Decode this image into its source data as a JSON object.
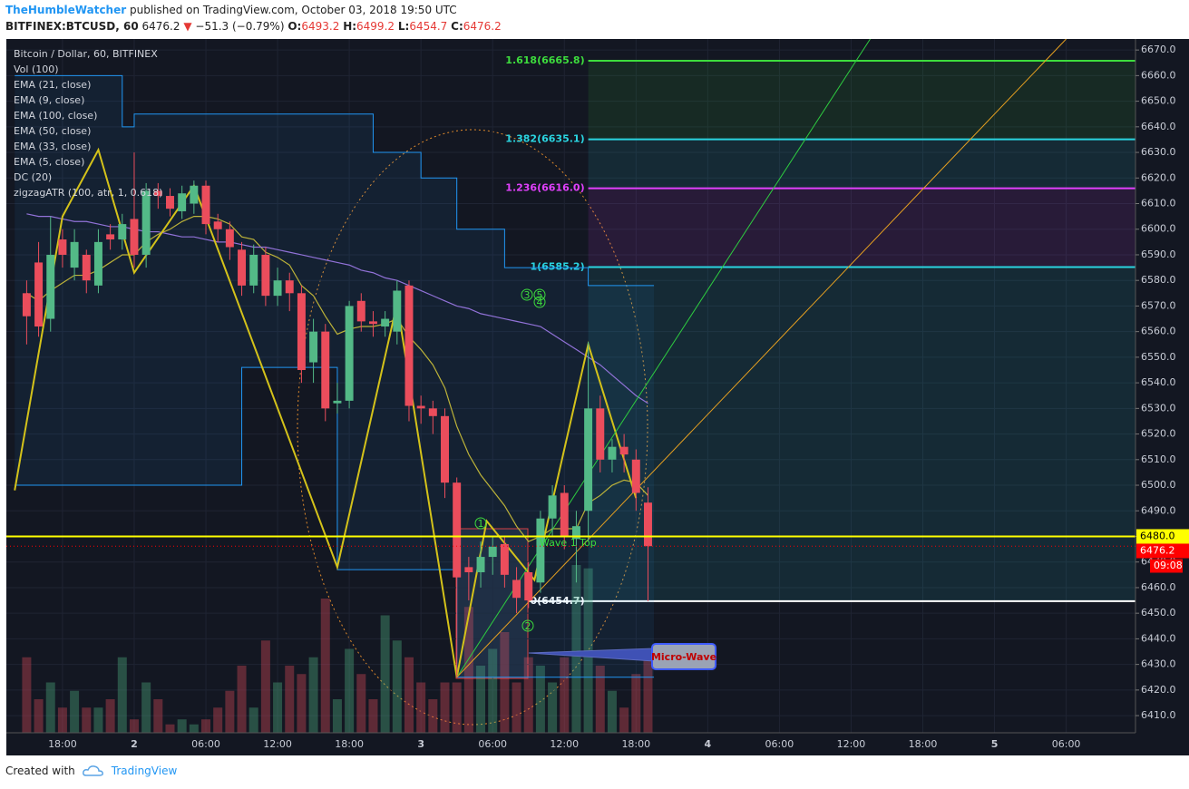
{
  "header": {
    "author": "TheHumbleWatcher",
    "published": "published on TradingView.com, October 03, 2018 19:50 UTC",
    "symbol": "BITFINEX:BTCUSD, 60",
    "last": "6476.2",
    "arrow": "▼",
    "change": "−51.3 (−0.79%)",
    "ohlc": [
      {
        "label": "O:",
        "value": "6493.2"
      },
      {
        "label": "H:",
        "value": "6499.2"
      },
      {
        "label": "L:",
        "value": "6454.7"
      },
      {
        "label": "C:",
        "value": "6476.2"
      }
    ]
  },
  "chart_data": {
    "type": "candlestick",
    "title": "Bitcoin / Dollar, 60, BITFINEX",
    "up_color": "#53b987",
    "down_color": "#eb4d5c",
    "x": [
      -3,
      -2,
      -1,
      0,
      1,
      2,
      3,
      4,
      5,
      6,
      7,
      8,
      9,
      10,
      11,
      12,
      13,
      14,
      15,
      16,
      17,
      18,
      19,
      20,
      21,
      22,
      23,
      24,
      25,
      26,
      27,
      28,
      29,
      30,
      31,
      32,
      33,
      34,
      35,
      36,
      37,
      38,
      39,
      40,
      41,
      42,
      43,
      44,
      45,
      46,
      47,
      48,
      49
    ],
    "open": [
      6575,
      6587,
      6565,
      6596,
      6585,
      6590,
      6578,
      6598,
      6596,
      6604,
      6590,
      6615,
      6613,
      6607,
      6610,
      6617,
      6603,
      6600,
      6592,
      6578,
      6590,
      6574,
      6580,
      6575,
      6548,
      6560,
      6532,
      6533,
      6572,
      6564,
      6562,
      6560,
      6578,
      6531,
      6530,
      6527,
      6501,
      6468,
      6466,
      6472,
      6477,
      6463,
      6466,
      6462,
      6487,
      6497,
      6479,
      6490,
      6530,
      6510,
      6515,
      6510,
      6493.2
    ],
    "high": [
      6580,
      6595,
      6605,
      6600,
      6600,
      6592,
      6600,
      6602,
      6606,
      6630,
      6618,
      6618,
      6616,
      6617,
      6619,
      6619,
      6606,
      6603,
      6595,
      6594,
      6593,
      6585,
      6583,
      6578,
      6565,
      6563,
      6540,
      6572,
      6575,
      6568,
      6568,
      6580,
      6580,
      6535,
      6533,
      6530,
      6503,
      6472,
      6478,
      6480,
      6480,
      6468,
      6470,
      6490,
      6500,
      6500,
      6490,
      6556,
      6535,
      6518,
      6520,
      6514,
      6499.2
    ],
    "low": [
      6555,
      6558,
      6560,
      6585,
      6580,
      6575,
      6575,
      6592,
      6592,
      6585,
      6585,
      6608,
      6605,
      6604,
      6606,
      6598,
      6595,
      6588,
      6574,
      6575,
      6570,
      6570,
      6568,
      6540,
      6540,
      6525,
      6528,
      6530,
      6560,
      6558,
      6558,
      6555,
      6525,
      6524,
      6520,
      6495,
      6425,
      6455,
      6460,
      6465,
      6460,
      6450,
      6452,
      6458,
      6480,
      6475,
      6462,
      6478,
      6505,
      6505,
      6505,
      6490,
      6454.7
    ],
    "close": [
      6566,
      6562,
      6590,
      6590,
      6595,
      6580,
      6595,
      6596,
      6602,
      6590,
      6615,
      6613,
      6608,
      6614,
      6617,
      6602,
      6600,
      6593,
      6578,
      6590,
      6574,
      6580,
      6575,
      6545,
      6560,
      6530,
      6533,
      6570,
      6564,
      6563,
      6565,
      6576,
      6531,
      6530,
      6527,
      6501,
      6464,
      6466,
      6472,
      6476,
      6465,
      6456,
      6455,
      6487,
      6496,
      6480,
      6484,
      6530,
      6510,
      6515,
      6512,
      6497,
      6476.2
    ],
    "xlim": [
      -4.7,
      89.8
    ],
    "xticks": [
      {
        "value": 0,
        "label": "18:00"
      },
      {
        "value": 6,
        "label": "2"
      },
      {
        "value": 12,
        "label": "06:00"
      },
      {
        "value": 18,
        "label": "12:00"
      },
      {
        "value": 24,
        "label": "18:00"
      },
      {
        "value": 30,
        "label": "3"
      },
      {
        "value": 36,
        "label": "06:00"
      },
      {
        "value": 42,
        "label": "12:00"
      },
      {
        "value": 48,
        "label": "18:00"
      },
      {
        "value": 54,
        "label": "4"
      },
      {
        "value": 60,
        "label": "06:00"
      },
      {
        "value": 66,
        "label": "12:00"
      },
      {
        "value": 72,
        "label": "18:00"
      },
      {
        "value": 78,
        "label": "5"
      },
      {
        "value": 84,
        "label": "06:00"
      }
    ],
    "ylim": [
      6403.3,
      6674.3
    ],
    "yticks": [
      {
        "value": 6410,
        "label": "6410.0"
      },
      {
        "value": 6420,
        "label": "6420.0"
      },
      {
        "value": 6430,
        "label": "6430.0"
      },
      {
        "value": 6440,
        "label": "6440.0"
      },
      {
        "value": 6450,
        "label": "6450.0"
      },
      {
        "value": 6460,
        "label": "6460.0"
      },
      {
        "value": 6470,
        "label": "6470.0"
      },
      {
        "value": 6480,
        "label": "6480.0"
      },
      {
        "value": 6490,
        "label": "6490.0"
      },
      {
        "value": 6500,
        "label": "6500.0"
      },
      {
        "value": 6510,
        "label": "6510.0"
      },
      {
        "value": 6520,
        "label": "6520.0"
      },
      {
        "value": 6530,
        "label": "6530.0"
      },
      {
        "value": 6540,
        "label": "6540.0"
      },
      {
        "value": 6550,
        "label": "6550.0"
      },
      {
        "value": 6560,
        "label": "6560.0"
      },
      {
        "value": 6570,
        "label": "6570.0"
      },
      {
        "value": 6580,
        "label": "6580.0"
      },
      {
        "value": 6590,
        "label": "6590.0"
      },
      {
        "value": 6600,
        "label": "6600.0"
      },
      {
        "value": 6610,
        "label": "6610.0"
      },
      {
        "value": 6620,
        "label": "6620.0"
      },
      {
        "value": 6630,
        "label": "6630.0"
      },
      {
        "value": 6640,
        "label": "6640.0"
      },
      {
        "value": 6650,
        "label": "6650.0"
      },
      {
        "value": 6660,
        "label": "6660.0"
      },
      {
        "value": 6670,
        "label": "6670.0"
      }
    ],
    "series": [
      {
        "name": "Vol (100)",
        "style": "volume",
        "values": [
          45,
          20,
          30,
          15,
          25,
          15,
          15,
          20,
          45,
          8,
          30,
          20,
          5,
          8,
          5,
          8,
          15,
          25,
          40,
          15,
          55,
          30,
          40,
          35,
          45,
          80,
          20,
          50,
          35,
          20,
          70,
          55,
          45,
          30,
          20,
          30,
          30,
          75,
          40,
          50,
          60,
          30,
          45,
          40,
          30,
          45,
          100,
          98,
          40,
          25,
          15,
          35,
          45
        ]
      },
      {
        "name": "EMA (21, close)"
      },
      {
        "name": "EMA (9, close)",
        "style": "line",
        "color": "#c9b52a",
        "values": [
          6575,
          6572,
          6576,
          6579,
          6582,
          6582,
          6584,
          6587,
          6590,
          6590,
          6595,
          6598,
          6600,
          6603,
          6605,
          6605,
          6604,
          6602,
          6597,
          6596,
          6591,
          6589,
          6586,
          6578,
          6574,
          6566,
          6559,
          6561,
          6562,
          6562,
          6563,
          6565,
          6558,
          6553,
          6547,
          6538,
          6523,
          6512,
          6504,
          6498,
          6492,
          6484,
          6478,
          6480,
          6483,
          6483,
          6483,
          6493,
          6496,
          6500,
          6502,
          6501,
          6496
        ]
      },
      {
        "name": "EMA (100, close)"
      },
      {
        "name": "EMA (50, close)",
        "style": "line",
        "color": "#9b6fd6",
        "values": [
          6606,
          6605,
          6605,
          6604,
          6603,
          6603,
          6602,
          6601,
          6601,
          6600,
          6599,
          6599,
          6598,
          6597,
          6597,
          6596,
          6595,
          6595,
          6594,
          6593,
          6593,
          6592,
          6591,
          6590,
          6589,
          6588,
          6587,
          6586,
          6584,
          6583,
          6581,
          6580,
          6578,
          6576,
          6574,
          6572,
          6570,
          6569,
          6567,
          6566,
          6565,
          6564,
          6563,
          6562,
          6559,
          6556,
          6553,
          6550,
          6547,
          6543,
          6539,
          6535,
          6532
        ]
      },
      {
        "name": "EMA (33, close)"
      },
      {
        "name": "EMA (5, close)"
      },
      {
        "name": "DC (20)",
        "style": "channel",
        "color": "#2196f3",
        "x": [
          -4,
          5,
          6,
          15,
          23,
          26,
          30,
          33,
          37,
          44,
          49
        ],
        "upper": [
          6660,
          6640,
          6645,
          6645,
          6645,
          6630,
          6620,
          6600,
          6585,
          6578,
          6578
        ],
        "lower": [
          6500,
          6500,
          6500,
          6546,
          6467,
          6467,
          6467,
          6425,
          6425,
          6425,
          6425
        ]
      },
      {
        "name": "zigzagATR (100, atr, 1, 0.618)",
        "style": "zigzag",
        "color": "#d4c21a",
        "x": [
          -4,
          0,
          3,
          6,
          11,
          23,
          28,
          33,
          35.5,
          39.5,
          44,
          48
        ],
        "values": [
          6498,
          6605,
          6631,
          6583,
          6617,
          6468,
          6571,
          6425,
          6486,
          6463,
          6555,
          6495
        ]
      }
    ],
    "trendlines": [
      {
        "color": "#2ecc40",
        "x": [
          33,
          67.6
        ],
        "values": [
          6425,
          6674.3
        ]
      },
      {
        "color": "#e6a020",
        "x": [
          33,
          84
        ],
        "values": [
          6425,
          6674.3
        ]
      }
    ],
    "fib_start": 44,
    "fib_levels": [
      {
        "label": "1.618(6665.8)",
        "value": 6665.8,
        "color": "#3ddc3d"
      },
      {
        "label": "1.382(6635.1)",
        "value": 6635.1,
        "color": "#2ad4e0"
      },
      {
        "label": "1.236(6616.0)",
        "value": 6616.0,
        "color": "#e040fb"
      },
      {
        "label": "1(6585.2)",
        "value": 6585.2,
        "color": "#2ad4e0"
      },
      {
        "label": "0(6454.7)",
        "value": 6454.7,
        "color": "#ffffff"
      }
    ],
    "price_lines": [
      {
        "value": 6480.0,
        "label": "6480.0",
        "color": "#ffff00",
        "text_color": "#000000"
      },
      {
        "value": 6476.2,
        "label": "6476.2",
        "color": "#ff0000",
        "text_color": "#ffffff"
      }
    ],
    "countdown": "09:08",
    "annotations": [
      "1",
      "2",
      "3",
      "5",
      "4",
      "Wave 1 Top",
      "Micro-Wave"
    ]
  },
  "footer": {
    "created": "Created with",
    "brand": "TradingView"
  }
}
